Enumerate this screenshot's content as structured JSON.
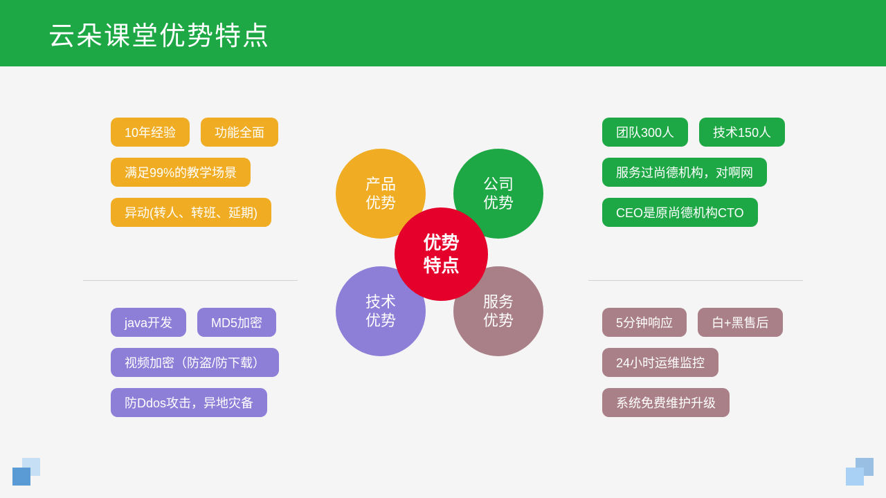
{
  "colors": {
    "header_bg": "#1ea845",
    "bg": "#f5f5f5",
    "divider": "#d0d0d0",
    "product": "#f0ad24",
    "company": "#1ea845",
    "tech": "#8d7ed8",
    "service": "#a98088",
    "center": "#e4002b",
    "corner_a": "#5b9bd5",
    "corner_b": "#a9d0f5"
  },
  "header": {
    "title": "云朵课堂优势特点"
  },
  "center": {
    "label_l1": "优势",
    "label_l2": "特点",
    "petals": {
      "tl": {
        "l1": "产品",
        "l2": "优势"
      },
      "tr": {
        "l1": "公司",
        "l2": "优势"
      },
      "bl": {
        "l1": "技术",
        "l2": "优势"
      },
      "br": {
        "l1": "服务",
        "l2": "优势"
      }
    }
  },
  "quadrants": {
    "product": {
      "rows": [
        [
          "10年经验",
          "功能全面"
        ],
        [
          "满足99%的教学场景"
        ],
        [
          "异动(转人、转班、延期)"
        ]
      ]
    },
    "company": {
      "rows": [
        [
          "团队300人",
          "技术150人"
        ],
        [
          "服务过尚德机构，对啊网"
        ],
        [
          "CEO是原尚德机构CTO"
        ]
      ]
    },
    "tech": {
      "rows": [
        [
          "java开发",
          "MD5加密"
        ],
        [
          "视频加密（防盗/防下载）"
        ],
        [
          "防Ddos攻击，异地灾备"
        ]
      ]
    },
    "service": {
      "rows": [
        [
          "5分钟响应",
          "白+黑售后"
        ],
        [
          "24小时运维监控"
        ],
        [
          "系统免费维护升级"
        ]
      ]
    }
  }
}
